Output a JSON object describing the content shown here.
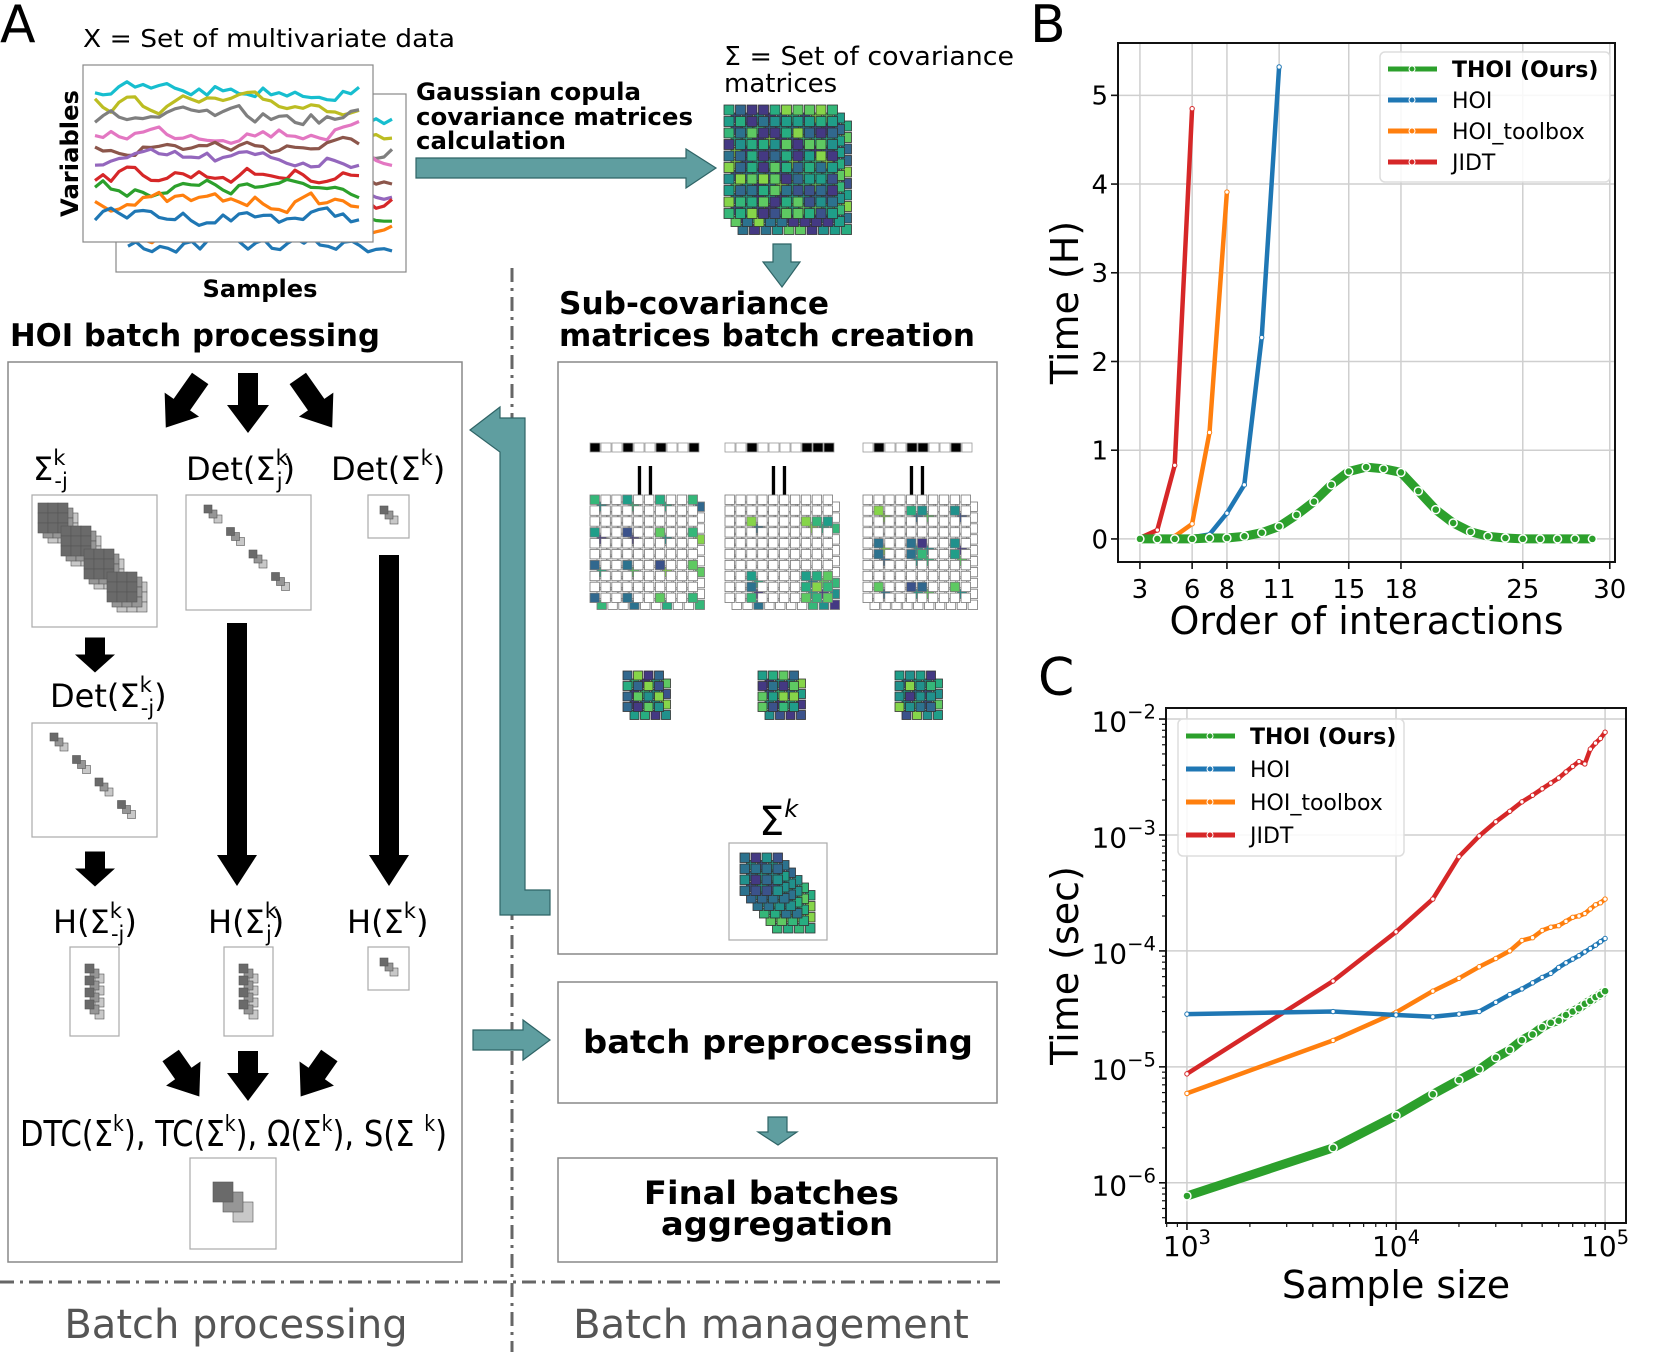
{
  "panel_labels": {
    "a": "A",
    "b": "B",
    "c": "C"
  },
  "panel_a": {
    "data_title": "X = Set of multivariate data",
    "y_label": "Variables",
    "x_label": "Samples",
    "step1_label": [
      "Gaussian copula",
      "covariance matrices",
      "calculation"
    ],
    "cov_title": [
      "Σ = Set of covariance",
      "matrices"
    ],
    "batch_processing_title": "HOI batch processing",
    "batch_creation_title": [
      "Sub-covariance",
      "matrices batch creation"
    ],
    "hoi_labels": {
      "sigma_minus_j": {
        "open": "Σ",
        "sup": "k",
        "sub": "-j",
        "close": ""
      },
      "det_sigma_j": {
        "open": "Det(Σ",
        "sup": "k",
        "sub": "j",
        "close": ")"
      },
      "det_sigma": {
        "open": "Det(Σ",
        "sup": "k",
        "close": ")"
      },
      "det_sigma_minus_j": {
        "open": "Det(Σ",
        "sup": "k",
        "sub": "-j",
        "close": ")"
      },
      "h_sigma_minus_j": {
        "open": "H(Σ",
        "sup": "k",
        "sub": "-j",
        "close": ")"
      },
      "h_sigma_j": {
        "open": "H(Σ",
        "sup": "k",
        "sub": "j",
        "close": ")"
      },
      "h_sigma": {
        "open": "H(Σ",
        "sup": "k",
        "close": ")"
      }
    },
    "measures": [
      {
        "open": "DTC(Σ",
        "sup": "k",
        "close": ")"
      },
      {
        "open": "TC(Σ",
        "sup": "k",
        "close": ")"
      },
      {
        "open": "Ω(Σ",
        "sup": "k",
        "close": ")"
      },
      {
        "open": "S(Σ ",
        "sup": "k",
        "close": ")"
      }
    ],
    "measures_separator": ", ",
    "equals_sign": "||",
    "selection_masks": [
      [
        1,
        0,
        0,
        1,
        0,
        0,
        1,
        0,
        0,
        1
      ],
      [
        0,
        0,
        1,
        0,
        0,
        0,
        0,
        1,
        1,
        1
      ],
      [
        0,
        1,
        0,
        0,
        1,
        1,
        0,
        0,
        1,
        0
      ]
    ],
    "sum_label": {
      "base": "Σ",
      "sup": "k"
    },
    "batch_preprocessing": "batch preprocessing",
    "final_aggregation": [
      "Final batches",
      "aggregation"
    ],
    "section_processing": "Batch processing",
    "section_management": "Batch management",
    "colors": {
      "flow_arrow": "#5f9ea0",
      "series": [
        "#17becf",
        "#bcbd22",
        "#7f7f7f",
        "#e377c2",
        "#8c564b",
        "#9467bd",
        "#d62728",
        "#2ca02c",
        "#ff7f0e",
        "#1f77b4"
      ],
      "viridis": [
        "#443983",
        "#3b528b",
        "#31688e",
        "#2c728e",
        "#21918c",
        "#1f9e89",
        "#27ad81",
        "#35b779",
        "#5ec962",
        "#86d549"
      ]
    }
  },
  "chart_data": [
    {
      "type": "line",
      "panel": "B",
      "xlabel": "Order of interactions",
      "ylabel": "Time (H)",
      "xticks": [
        3,
        6,
        8,
        11,
        15,
        18,
        25,
        30
      ],
      "yticks": [
        0,
        1,
        2,
        3,
        4,
        5
      ],
      "xlim": [
        1.74,
        30.3
      ],
      "ylim": [
        -0.26,
        5.59
      ],
      "grid": true,
      "legend": "top-right",
      "series": [
        {
          "name": "THOI (Ours)",
          "color": "#2ca02c",
          "bold": true,
          "x": [
            3,
            4,
            5,
            6,
            7,
            8,
            9,
            10,
            11,
            12,
            13,
            14,
            15,
            16,
            17,
            18,
            19,
            20,
            21,
            22,
            23,
            24,
            25,
            26,
            27,
            28,
            29
          ],
          "y": [
            0,
            0,
            0,
            0,
            0.01,
            0.01,
            0.03,
            0.07,
            0.14,
            0.27,
            0.42,
            0.61,
            0.76,
            0.81,
            0.79,
            0.75,
            0.54,
            0.33,
            0.18,
            0.08,
            0.03,
            0.01,
            0,
            0,
            0,
            0,
            0
          ]
        },
        {
          "name": "HOI",
          "color": "#1f77b4",
          "x": [
            3,
            4,
            5,
            6,
            7,
            8,
            9,
            10,
            11
          ],
          "y": [
            0,
            0,
            0,
            0.02,
            0.05,
            0.29,
            0.61,
            2.27,
            5.32
          ]
        },
        {
          "name": "HOI_toolbox",
          "color": "#ff7f0e",
          "x": [
            3,
            4,
            5,
            6,
            7,
            8
          ],
          "y": [
            0,
            0,
            0.03,
            0.17,
            1.2,
            3.91
          ]
        },
        {
          "name": "JIDT",
          "color": "#d62728",
          "x": [
            3,
            4,
            5,
            6
          ],
          "y": [
            0.01,
            0.1,
            0.83,
            4.85
          ]
        }
      ]
    },
    {
      "type": "line",
      "panel": "C",
      "xlabel": "Sample size",
      "ylabel": "Time (sec)",
      "xscale": "log",
      "yscale": "log",
      "xticks": [
        {
          "base": "10",
          "exp": "3",
          "value": 1000
        },
        {
          "base": "10",
          "exp": "4",
          "value": 10000
        },
        {
          "base": "10",
          "exp": "5",
          "value": 100000
        }
      ],
      "yticks": [
        {
          "base": "10",
          "exp": "−2",
          "value": 0.01
        },
        {
          "base": "10",
          "exp": "−3",
          "value": 0.001
        },
        {
          "base": "10",
          "exp": "−4",
          "value": 0.0001
        },
        {
          "base": "10",
          "exp": "−5",
          "value": 1e-05
        },
        {
          "base": "10",
          "exp": "−6",
          "value": 1e-06
        }
      ],
      "xlim": [
        794,
        125900
      ],
      "ylim": [
        4.5e-07,
        0.01245
      ],
      "grid": true,
      "legend": "top-left",
      "x": [
        1000,
        5000,
        10000,
        15000,
        20000,
        25000,
        30000,
        35000,
        40000,
        45000,
        50000,
        55000,
        60000,
        65000,
        70000,
        75000,
        80000,
        85000,
        90000,
        95000,
        100000
      ],
      "series": [
        {
          "name": "THOI (Ours)",
          "color": "#2ca02c",
          "bold": true,
          "y": [
            7.7e-07,
            2e-06,
            3.8e-06,
            5.8e-06,
            7.7e-06,
            9.5e-06,
            1.2e-05,
            1.4e-05,
            1.7e-05,
            1.9e-05,
            2.2e-05,
            2.4e-05,
            2.5e-05,
            2.8e-05,
            3e-05,
            3.2e-05,
            3.5e-05,
            3.7e-05,
            4e-05,
            4.2e-05,
            4.5e-05
          ]
        },
        {
          "name": "HOI",
          "color": "#1f77b4",
          "y": [
            2.85e-05,
            3e-05,
            2.8e-05,
            2.7e-05,
            2.85e-05,
            3e-05,
            3.6e-05,
            4.2e-05,
            4.7e-05,
            5.3e-05,
            5.9e-05,
            6.4e-05,
            7.2e-05,
            7.9e-05,
            8.5e-05,
            9.1e-05,
            9.8e-05,
            0.000105,
            0.000112,
            0.00012,
            0.000128
          ]
        },
        {
          "name": "HOI_toolbox",
          "color": "#ff7f0e",
          "y": [
            5.9e-06,
            1.69e-05,
            2.95e-05,
            4.5e-05,
            5.8e-05,
            7.3e-05,
            8.6e-05,
            0.0001,
            0.000123,
            0.00013,
            0.00015,
            0.00016,
            0.000165,
            0.00018,
            0.000195,
            0.0002,
            0.00021,
            0.00023,
            0.00025,
            0.00026,
            0.00028
          ]
        },
        {
          "name": "JIDT",
          "color": "#d62728",
          "y": [
            8.7e-06,
            5.5e-05,
            0.000146,
            0.00028,
            0.00065,
            0.00098,
            0.0013,
            0.0016,
            0.00193,
            0.0022,
            0.0025,
            0.0028,
            0.0031,
            0.0035,
            0.0039,
            0.0043,
            0.0041,
            0.0055,
            0.0062,
            0.0068,
            0.0077
          ]
        }
      ]
    }
  ]
}
